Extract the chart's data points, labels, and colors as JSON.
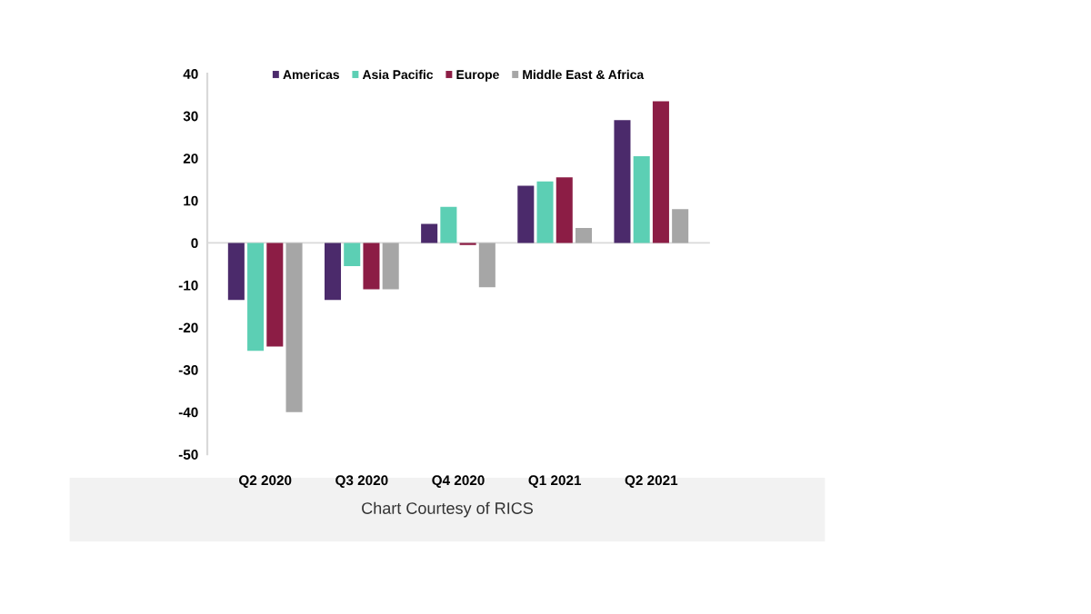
{
  "chart_data": {
    "type": "bar",
    "categories": [
      "Q2 2020",
      "Q3 2020",
      "Q4 2020",
      "Q1 2021",
      "Q2 2021"
    ],
    "series": [
      {
        "name": "Americas",
        "color": "#4b2a6b",
        "values": [
          -13.5,
          -13.5,
          4.5,
          13.5,
          29
        ]
      },
      {
        "name": "Asia Pacific",
        "color": "#5ccfb4",
        "values": [
          -25.5,
          -5.5,
          8.5,
          14.5,
          20.5
        ]
      },
      {
        "name": "Europe",
        "color": "#8c1d45",
        "values": [
          -24.5,
          -11,
          -0.5,
          15.5,
          33.5
        ]
      },
      {
        "name": "Middle East & Africa",
        "color": "#a6a6a6",
        "values": [
          -40,
          -11,
          -10.5,
          3.5,
          8
        ]
      }
    ],
    "ylim": [
      -50,
      40
    ],
    "yticks": [
      -50,
      -40,
      -30,
      -20,
      -10,
      0,
      10,
      20,
      30,
      40
    ],
    "legend": "top",
    "annotations": [
      "Chart Courtesy of RICS"
    ]
  }
}
